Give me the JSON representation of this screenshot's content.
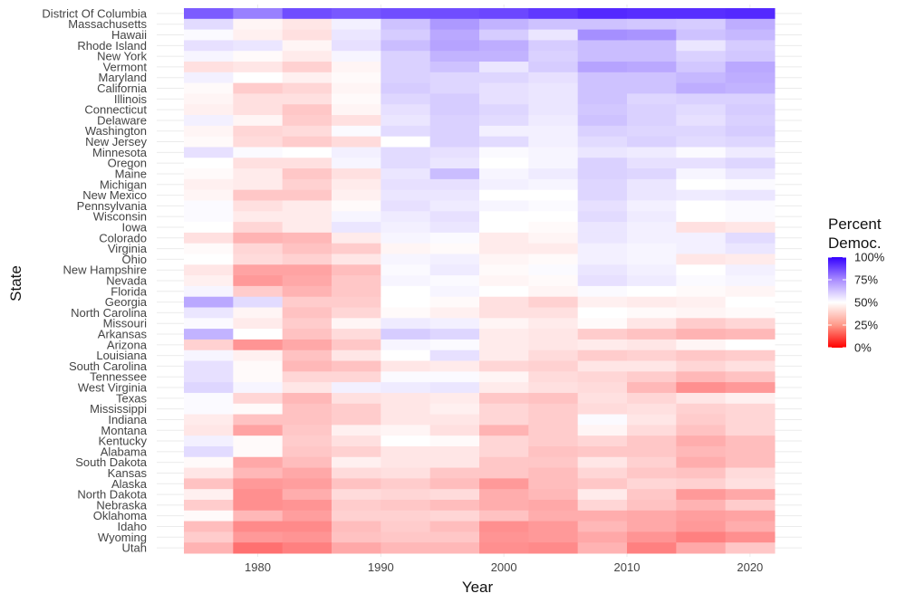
{
  "chart_data": {
    "type": "heatmap",
    "title": "",
    "xlabel": "Year",
    "ylabel": "State",
    "x": [
      1976,
      1980,
      1984,
      1988,
      1992,
      1996,
      2000,
      2004,
      2008,
      2012,
      2016,
      2020
    ],
    "x_ticks": [
      "1980",
      "1990",
      "2000",
      "2010",
      "2020"
    ],
    "legend": {
      "title_line1": "Percent",
      "title_line2": "Democ.",
      "ticks": [
        "100%",
        "75%",
        "50%",
        "25%",
        "0%"
      ],
      "tick_values": [
        100,
        75,
        50,
        25,
        0
      ],
      "position": "right"
    },
    "color_scale": {
      "low": "#ff0000",
      "mid": "#ffffff",
      "high": "#3300ff",
      "midpoint": 50,
      "limits": [
        0,
        100
      ]
    },
    "grid": true,
    "rows": [
      {
        "state": "District Of Columbia",
        "values": [
          82,
          75,
          85,
          83,
          85,
          85,
          86,
          89,
          92,
          91,
          91,
          92
        ]
      },
      {
        "state": "Massachusetts",
        "values": [
          57,
          48,
          45,
          53,
          62,
          70,
          65,
          62,
          62,
          61,
          60,
          66
        ]
      },
      {
        "state": "Hawaii",
        "values": [
          51,
          47,
          44,
          55,
          60,
          67,
          60,
          55,
          72,
          71,
          62,
          64
        ]
      },
      {
        "state": "Rhode Island",
        "values": [
          56,
          55,
          48,
          56,
          63,
          68,
          66,
          60,
          63,
          63,
          55,
          60
        ]
      },
      {
        "state": "New York",
        "values": [
          52,
          49,
          46,
          52,
          59,
          65,
          65,
          59,
          63,
          63,
          59,
          61
        ]
      },
      {
        "state": "Vermont",
        "values": [
          44,
          45,
          41,
          48,
          59,
          62,
          55,
          60,
          68,
          67,
          61,
          67
        ]
      },
      {
        "state": "Maryland",
        "values": [
          53,
          50,
          47,
          49,
          59,
          58,
          58,
          56,
          62,
          62,
          64,
          66
        ]
      },
      {
        "state": "California",
        "values": [
          49,
          40,
          42,
          48,
          60,
          58,
          56,
          55,
          62,
          62,
          66,
          65
        ]
      },
      {
        "state": "Illinois",
        "values": [
          48,
          44,
          44,
          49,
          58,
          60,
          56,
          55,
          62,
          58,
          59,
          59
        ]
      },
      {
        "state": "Connecticut",
        "values": [
          47,
          44,
          39,
          48,
          56,
          60,
          58,
          55,
          61,
          59,
          57,
          60
        ]
      },
      {
        "state": "Delaware",
        "values": [
          53,
          48,
          40,
          44,
          55,
          59,
          57,
          54,
          62,
          59,
          56,
          59
        ]
      },
      {
        "state": "Washington",
        "values": [
          48,
          42,
          43,
          51,
          57,
          59,
          53,
          53,
          59,
          58,
          58,
          60
        ]
      },
      {
        "state": "New Jersey",
        "values": [
          49,
          43,
          40,
          43,
          50,
          59,
          57,
          53,
          57,
          59,
          57,
          58
        ]
      },
      {
        "state": "Minnesota",
        "values": [
          56,
          51,
          50,
          53,
          57,
          56,
          51,
          52,
          55,
          54,
          51,
          54
        ]
      },
      {
        "state": "Oregon",
        "values": [
          50,
          44,
          44,
          52,
          57,
          55,
          50,
          52,
          59,
          56,
          56,
          58
        ]
      },
      {
        "state": "Maine",
        "values": [
          49,
          46,
          39,
          44,
          55,
          63,
          52,
          54,
          59,
          58,
          52,
          55
        ]
      },
      {
        "state": "Michigan",
        "values": [
          47,
          46,
          41,
          46,
          56,
          56,
          53,
          52,
          58,
          55,
          50,
          51
        ]
      },
      {
        "state": "New Mexico",
        "values": [
          48,
          39,
          39,
          47,
          55,
          55,
          50,
          50,
          58,
          55,
          54,
          55
        ]
      },
      {
        "state": "Pennsylvania",
        "values": [
          51,
          44,
          46,
          49,
          56,
          54,
          52,
          51,
          56,
          53,
          50,
          51
        ]
      },
      {
        "state": "Wisconsin",
        "values": [
          51,
          46,
          46,
          52,
          54,
          56,
          50,
          50,
          57,
          54,
          50,
          51
        ]
      },
      {
        "state": "Iowa",
        "values": [
          50,
          42,
          46,
          55,
          53,
          55,
          50,
          49,
          55,
          53,
          44,
          45
        ]
      },
      {
        "state": "Colorado",
        "values": [
          44,
          35,
          36,
          46,
          52,
          51,
          46,
          48,
          55,
          53,
          53,
          57
        ]
      },
      {
        "state": "Virginia",
        "values": [
          49,
          42,
          38,
          40,
          48,
          49,
          46,
          46,
          53,
          52,
          53,
          55
        ]
      },
      {
        "state": "Ohio",
        "values": [
          50,
          43,
          41,
          45,
          52,
          53,
          48,
          49,
          53,
          52,
          45,
          46
        ]
      },
      {
        "state": "New Hampshire",
        "values": [
          45,
          32,
          32,
          37,
          51,
          54,
          49,
          51,
          55,
          53,
          50,
          53
        ]
      },
      {
        "state": "Nevada",
        "values": [
          47,
          30,
          33,
          39,
          52,
          51,
          48,
          49,
          56,
          54,
          51,
          52
        ]
      },
      {
        "state": "Florida",
        "values": [
          52,
          40,
          35,
          39,
          50,
          52,
          50,
          48,
          51,
          50,
          49,
          48
        ]
      },
      {
        "state": "Georgia",
        "values": [
          67,
          57,
          40,
          40,
          50,
          49,
          44,
          41,
          47,
          46,
          47,
          50
        ]
      },
      {
        "state": "North Carolina",
        "values": [
          55,
          48,
          38,
          42,
          49,
          47,
          44,
          44,
          50,
          49,
          48,
          49
        ]
      },
      {
        "state": "Missouri",
        "values": [
          51,
          46,
          40,
          48,
          54,
          53,
          48,
          46,
          49,
          45,
          40,
          42
        ]
      },
      {
        "state": "Arkansas",
        "values": [
          65,
          50,
          38,
          43,
          60,
          58,
          46,
          45,
          40,
          38,
          35,
          36
        ]
      },
      {
        "state": "Arizona",
        "values": [
          41,
          29,
          33,
          39,
          52,
          51,
          46,
          45,
          46,
          45,
          48,
          50
        ]
      },
      {
        "state": "Louisiana",
        "values": [
          52,
          47,
          38,
          45,
          50,
          56,
          46,
          43,
          40,
          41,
          39,
          40
        ]
      },
      {
        "state": "South Carolina",
        "values": [
          56,
          49,
          36,
          38,
          45,
          46,
          42,
          41,
          45,
          45,
          42,
          44
        ]
      },
      {
        "state": "Tennessee",
        "values": [
          56,
          49,
          42,
          42,
          51,
          51,
          48,
          43,
          42,
          40,
          36,
          38
        ]
      },
      {
        "state": "West Virginia",
        "values": [
          58,
          52,
          45,
          53,
          54,
          55,
          46,
          44,
          43,
          36,
          28,
          30
        ]
      },
      {
        "state": "Texas",
        "values": [
          51,
          42,
          36,
          44,
          45,
          46,
          39,
          38,
          44,
          42,
          45,
          47
        ]
      },
      {
        "state": "Mississippi",
        "values": [
          51,
          49,
          38,
          40,
          45,
          47,
          42,
          40,
          43,
          44,
          41,
          42
        ]
      },
      {
        "state": "Indiana",
        "values": [
          46,
          38,
          38,
          40,
          45,
          45,
          42,
          40,
          51,
          45,
          40,
          42
        ]
      },
      {
        "state": "Montana",
        "values": [
          45,
          32,
          39,
          47,
          48,
          44,
          35,
          40,
          48,
          43,
          38,
          42
        ]
      },
      {
        "state": "Kentucky",
        "values": [
          53,
          49,
          40,
          44,
          50,
          49,
          42,
          40,
          42,
          39,
          34,
          37
        ]
      },
      {
        "state": "Alabama",
        "values": [
          57,
          49,
          39,
          41,
          45,
          45,
          42,
          38,
          39,
          39,
          36,
          37
        ]
      },
      {
        "state": "South Dakota",
        "values": [
          49,
          33,
          37,
          47,
          45,
          45,
          39,
          39,
          45,
          41,
          34,
          37
        ]
      },
      {
        "state": "Kansas",
        "values": [
          45,
          36,
          33,
          43,
          44,
          39,
          39,
          37,
          42,
          39,
          38,
          43
        ]
      },
      {
        "state": "Alaska",
        "values": [
          38,
          30,
          31,
          38,
          40,
          37,
          30,
          37,
          39,
          42,
          41,
          44
        ]
      },
      {
        "state": "North Dakota",
        "values": [
          47,
          28,
          34,
          43,
          42,
          43,
          34,
          36,
          46,
          39,
          30,
          33
        ]
      },
      {
        "state": "Nebraska",
        "values": [
          40,
          28,
          29,
          40,
          39,
          37,
          34,
          33,
          42,
          38,
          35,
          40
        ]
      },
      {
        "state": "Oklahoma",
        "values": [
          49,
          36,
          31,
          41,
          41,
          42,
          38,
          34,
          34,
          33,
          31,
          32
        ]
      },
      {
        "state": "Idaho",
        "values": [
          37,
          27,
          27,
          37,
          40,
          37,
          28,
          30,
          36,
          33,
          30,
          34
        ]
      },
      {
        "state": "Wyoming",
        "values": [
          40,
          30,
          29,
          38,
          39,
          39,
          29,
          30,
          33,
          29,
          25,
          28
        ]
      },
      {
        "state": "Utah",
        "values": [
          35,
          22,
          25,
          33,
          36,
          36,
          28,
          27,
          35,
          25,
          33,
          39
        ]
      }
    ]
  }
}
